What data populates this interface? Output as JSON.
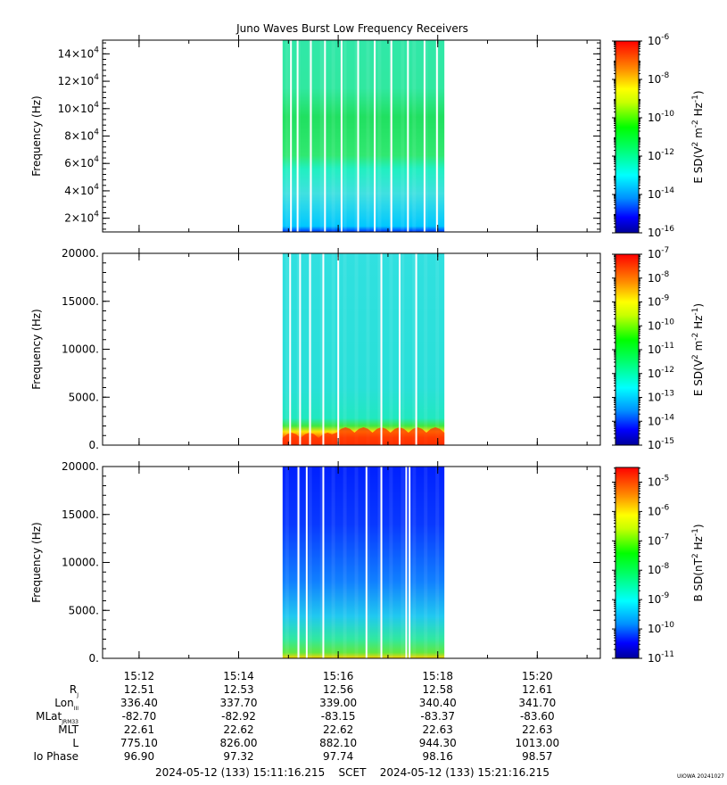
{
  "chart_data": [
    {
      "type": "heatmap",
      "title": "Juno Waves Burst Low Frequency Receivers",
      "ylabel": "Frequency (Hz)",
      "ylim": [
        10000,
        150000
      ],
      "yticks": [
        {
          "value": 20000,
          "mantissa": "2",
          "exp": "4"
        },
        {
          "value": 40000,
          "mantissa": "4",
          "exp": "4"
        },
        {
          "value": 60000,
          "mantissa": "6",
          "exp": "4"
        },
        {
          "value": 80000,
          "mantissa": "8",
          "exp": "4"
        },
        {
          "value": 100000,
          "mantissa": "10",
          "exp": "4"
        },
        {
          "value": 120000,
          "mantissa": "12",
          "exp": "4"
        },
        {
          "value": 140000,
          "mantissa": "14",
          "exp": "4"
        }
      ],
      "data_time_range": [
        "15:14:53",
        "15:18:08"
      ],
      "colorbar": {
        "label_main": "E SD(V",
        "label_sup1": "2",
        "label_mid": " m",
        "label_sup2": "-2",
        "label_mid2": " Hz",
        "label_sup3": "-1",
        "label_end": ")",
        "log_min": -16,
        "log_max": -6,
        "ticks": [
          {
            "value": -16,
            "text": "10",
            "exp": "-16"
          },
          {
            "value": -14,
            "text": "10",
            "exp": "-14"
          },
          {
            "value": -12,
            "text": "10",
            "exp": "-12"
          },
          {
            "value": -10,
            "text": "10",
            "exp": "-10"
          },
          {
            "value": -8,
            "text": "10",
            "exp": "-8"
          },
          {
            "value": -6,
            "text": "10",
            "exp": "-6"
          }
        ]
      }
    },
    {
      "type": "heatmap",
      "title": "",
      "ylabel": "Frequency (Hz)",
      "ylim": [
        0,
        20000
      ],
      "yticks": [
        {
          "value": 0,
          "text": "0."
        },
        {
          "value": 5000,
          "text": "5000."
        },
        {
          "value": 10000,
          "text": "10000."
        },
        {
          "value": 15000,
          "text": "15000."
        },
        {
          "value": 20000,
          "text": "20000."
        }
      ],
      "data_time_range": [
        "15:14:53",
        "15:18:08"
      ],
      "colorbar": {
        "label_main": "E SD(V",
        "label_sup1": "2",
        "label_mid": " m",
        "label_sup2": "-2",
        "label_mid2": " Hz",
        "label_sup3": "-1",
        "label_end": ")",
        "log_min": -15,
        "log_max": -7,
        "ticks": [
          {
            "value": -15,
            "text": "10",
            "exp": "-15"
          },
          {
            "value": -14,
            "text": "10",
            "exp": "-14"
          },
          {
            "value": -13,
            "text": "10",
            "exp": "-13"
          },
          {
            "value": -12,
            "text": "10",
            "exp": "-12"
          },
          {
            "value": -11,
            "text": "10",
            "exp": "-11"
          },
          {
            "value": -10,
            "text": "10",
            "exp": "-10"
          },
          {
            "value": -9,
            "text": "10",
            "exp": "-9"
          },
          {
            "value": -8,
            "text": "10",
            "exp": "-8"
          },
          {
            "value": -7,
            "text": "10",
            "exp": "-7"
          }
        ]
      }
    },
    {
      "type": "heatmap",
      "title": "",
      "ylabel": "Frequency (Hz)",
      "ylim": [
        0,
        20000
      ],
      "yticks": [
        {
          "value": 0,
          "text": "0."
        },
        {
          "value": 5000,
          "text": "5000."
        },
        {
          "value": 10000,
          "text": "10000."
        },
        {
          "value": 15000,
          "text": "15000."
        },
        {
          "value": 20000,
          "text": "20000."
        }
      ],
      "data_time_range": [
        "15:14:53",
        "15:18:08"
      ],
      "colorbar": {
        "label_main": "B SD(nT",
        "label_sup1": "2",
        "label_mid": " Hz",
        "label_sup2": "-1",
        "label_mid2": "",
        "label_sup3": "",
        "label_end": ")",
        "log_min": -11,
        "log_max": -4.5,
        "ticks": [
          {
            "value": -11,
            "text": "10",
            "exp": "-11"
          },
          {
            "value": -10,
            "text": "10",
            "exp": "-10"
          },
          {
            "value": -9,
            "text": "10",
            "exp": "-9"
          },
          {
            "value": -8,
            "text": "10",
            "exp": "-8"
          },
          {
            "value": -7,
            "text": "10",
            "exp": "-7"
          },
          {
            "value": -6,
            "text": "10",
            "exp": "-6"
          },
          {
            "value": -5,
            "text": "10",
            "exp": "-5"
          }
        ]
      }
    }
  ],
  "time_axis": {
    "start": "15:11:16",
    "end": "15:21:16",
    "major_ticks": [
      "15:12",
      "15:14",
      "15:16",
      "15:18",
      "15:20"
    ]
  },
  "ephemeris": {
    "labels": [
      {
        "base": "R",
        "sub": "J"
      },
      {
        "base": "Lon",
        "sub": "III"
      },
      {
        "base": "MLat",
        "sub": "JRM33"
      },
      {
        "base": "MLT",
        "sub": ""
      },
      {
        "base": "L",
        "sub": ""
      },
      {
        "base": "Io Phase",
        "sub": ""
      }
    ],
    "columns": [
      [
        "12.51",
        "336.40",
        "-82.70",
        "22.61",
        "775.10",
        "96.90"
      ],
      [
        "12.53",
        "337.70",
        "-82.92",
        "22.62",
        "826.00",
        "97.32"
      ],
      [
        "12.56",
        "339.00",
        "-83.15",
        "22.62",
        "882.10",
        "97.74"
      ],
      [
        "12.58",
        "340.40",
        "-83.37",
        "22.63",
        "944.30",
        "98.16"
      ],
      [
        "12.61",
        "341.70",
        "-83.60",
        "22.63",
        "1013.00",
        "98.57"
      ]
    ]
  },
  "footer": {
    "range_text": "2024-05-12 (133) 15:11:16.215    SCET    2024-05-12 (133) 15:21:16.215",
    "stamp": "UIOWA 20241027"
  }
}
